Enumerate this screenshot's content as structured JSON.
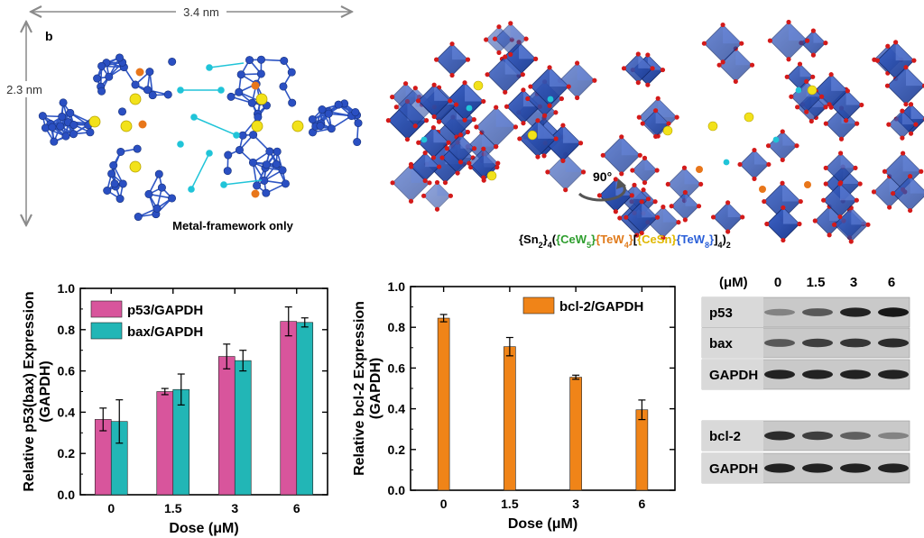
{
  "top_panel": {
    "panel_letter": "b",
    "width_label": "3.4 nm",
    "height_label": "2.3 nm",
    "metal_caption": "Metal-framework only",
    "rotation_label": "90°",
    "formula": {
      "parts": [
        {
          "text": "{Sn",
          "color": "#000000"
        },
        {
          "text": "2",
          "sub": true,
          "color": "#000000"
        },
        {
          "text": "}",
          "color": "#000000"
        },
        {
          "text": "4",
          "sub": true,
          "color": "#000000"
        },
        {
          "text": "(",
          "color": "#000000"
        },
        {
          "text": "{CeW",
          "color": "#2e9e2e"
        },
        {
          "text": "5",
          "sub": true,
          "color": "#2e9e2e"
        },
        {
          "text": "}",
          "color": "#2e9e2e"
        },
        {
          "text": "{TeW",
          "color": "#e07a1a"
        },
        {
          "text": "4",
          "sub": true,
          "color": "#e07a1a"
        },
        {
          "text": "}",
          "color": "#e07a1a"
        },
        {
          "text": "[",
          "color": "#000000"
        },
        {
          "text": "{CeSn}",
          "color": "#e0b800"
        },
        {
          "text": "{TeW",
          "color": "#2a5fd8"
        },
        {
          "text": "8",
          "sub": true,
          "color": "#2a5fd8"
        },
        {
          "text": "}",
          "color": "#2a5fd8"
        },
        {
          "text": "]",
          "color": "#000000"
        },
        {
          "text": "4",
          "sub": true,
          "color": "#000000"
        },
        {
          "text": ")",
          "color": "#000000"
        },
        {
          "text": "2",
          "sub": true,
          "color": "#000000"
        }
      ]
    }
  },
  "chart_data": [
    {
      "type": "bar",
      "title": "",
      "xlabel": "Dose (μM)",
      "ylabel_line1": "Relative p53(bax) Expression",
      "ylabel_line2": "(GAPDH)",
      "categories": [
        "0",
        "1.5",
        "3",
        "6"
      ],
      "ylim": [
        0.0,
        1.0
      ],
      "yticks": [
        "0.0",
        "0.2",
        "0.4",
        "0.6",
        "0.8",
        "1.0"
      ],
      "series": [
        {
          "name": "p53/GAPDH",
          "color": "#d8559c",
          "values": [
            0.365,
            0.5,
            0.67,
            0.84
          ],
          "errors": [
            0.055,
            0.015,
            0.06,
            0.07
          ]
        },
        {
          "name": "bax/GAPDH",
          "color": "#22b6b6",
          "values": [
            0.355,
            0.51,
            0.65,
            0.835
          ],
          "errors": [
            0.105,
            0.075,
            0.05,
            0.022
          ]
        }
      ],
      "legend_position": "top-left"
    },
    {
      "type": "bar",
      "title": "",
      "xlabel": "Dose (μM)",
      "ylabel_line1": "Relative bcl-2 Expression",
      "ylabel_line2": "(GAPDH)",
      "categories": [
        "0",
        "1.5",
        "3",
        "6"
      ],
      "ylim": [
        0.0,
        1.0
      ],
      "yticks": [
        "0.0",
        "0.2",
        "0.4",
        "0.6",
        "0.8",
        "1.0"
      ],
      "series": [
        {
          "name": "bcl-2/GAPDH",
          "color": "#f08418",
          "values": [
            0.845,
            0.705,
            0.555,
            0.395
          ],
          "errors": [
            0.018,
            0.045,
            0.01,
            0.048
          ]
        }
      ],
      "legend_position": "top-right"
    }
  ],
  "western_blot": {
    "unit_label": "(μM)",
    "doses": [
      "0",
      "1.5",
      "3",
      "6"
    ],
    "rows": [
      {
        "label": "p53",
        "intensity": [
          0.35,
          0.65,
          0.95,
          1.0
        ]
      },
      {
        "label": "bax",
        "intensity": [
          0.65,
          0.8,
          0.85,
          0.9
        ]
      },
      {
        "label": "GAPDH",
        "intensity": [
          0.95,
          0.95,
          0.95,
          0.95
        ]
      },
      {
        "label": "bcl-2",
        "intensity": [
          0.9,
          0.8,
          0.6,
          0.35
        ]
      },
      {
        "label": "GAPDH",
        "intensity": [
          0.95,
          0.95,
          0.95,
          0.95
        ]
      }
    ]
  }
}
